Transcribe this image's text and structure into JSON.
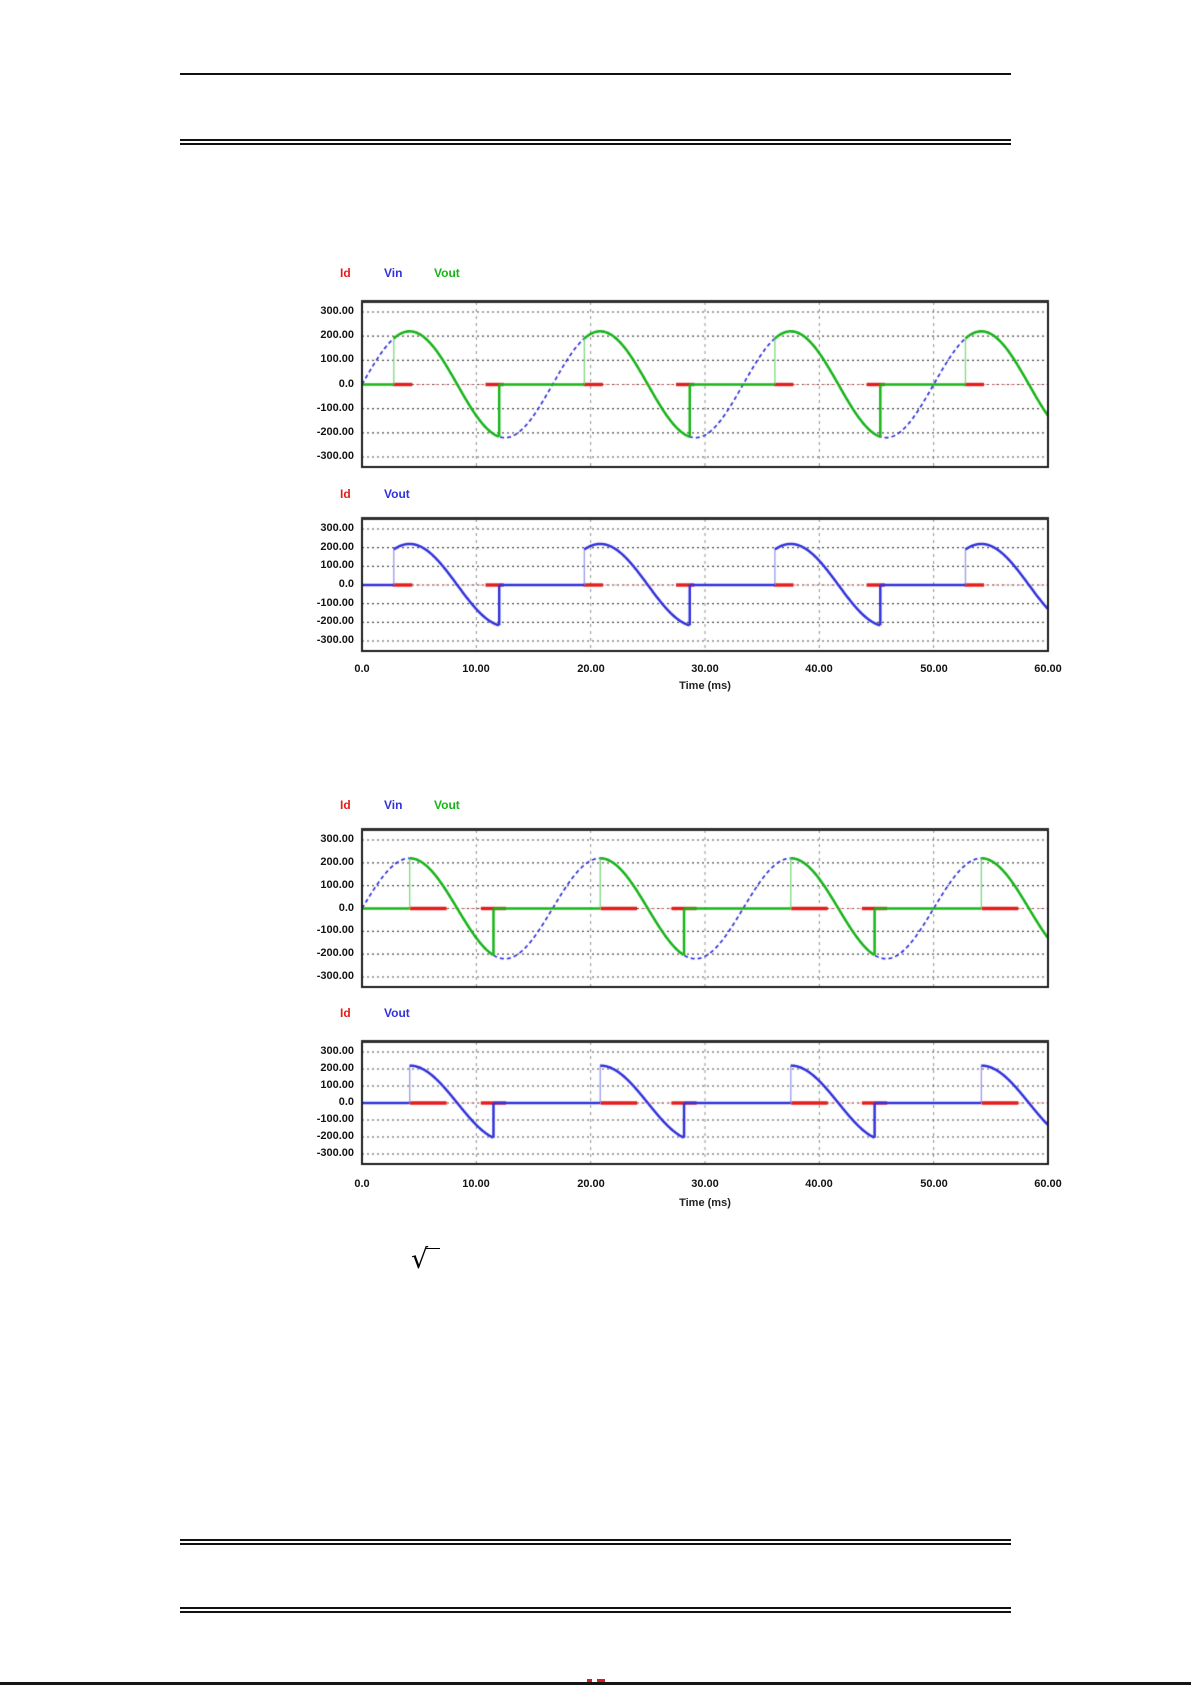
{
  "figures": [
    {
      "x_label": "Time (ms)",
      "x_tick_labels": [
        "0.0",
        "10.00",
        "20.00",
        "30.00",
        "40.00",
        "50.00",
        "60.00"
      ],
      "plots": [
        {
          "legend": [
            {
              "label": "Id",
              "color": "#e41c1c"
            },
            {
              "label": "Vin",
              "color": "#3232dc"
            },
            {
              "label": "Vout",
              "color": "#17b517"
            }
          ],
          "y_tick_labels": [
            "300.00",
            "200.00",
            "100.00",
            "0.0",
            "-100.00",
            "-200.00",
            "-300.00"
          ]
        },
        {
          "legend": [
            {
              "label": "Id",
              "color": "#e41c1c"
            },
            {
              "label": "Vout",
              "color": "#3232dc"
            }
          ],
          "y_tick_labels": [
            "300.00",
            "200.00",
            "100.00",
            "0.0",
            "-100.00",
            "-200.00",
            "-300.00"
          ]
        }
      ]
    },
    {
      "x_label": "Time (ms)",
      "x_tick_labels": [
        "0.0",
        "10.00",
        "20.00",
        "30.00",
        "40.00",
        "50.00",
        "60.00"
      ],
      "plots": [
        {
          "legend": [
            {
              "label": "Id",
              "color": "#e41c1c"
            },
            {
              "label": "Vin",
              "color": "#3232dc"
            },
            {
              "label": "Vout",
              "color": "#17b517"
            }
          ],
          "y_tick_labels": [
            "300.00",
            "200.00",
            "100.00",
            "0.0",
            "-100.00",
            "-200.00",
            "-300.00"
          ]
        },
        {
          "legend": [
            {
              "label": "Id",
              "color": "#e41c1c"
            },
            {
              "label": "Vout",
              "color": "#3232dc"
            }
          ],
          "y_tick_labels": [
            "300.00",
            "200.00",
            "100.00",
            "0.0",
            "-100.00",
            "-200.00",
            "-300.00"
          ]
        }
      ]
    }
  ],
  "equation_fragment": {
    "radical": "√"
  },
  "chart_data": [
    {
      "id": "figure1-upper",
      "type": "line",
      "xlabel": "Time (ms)",
      "x_range_ms": [
        0,
        60
      ],
      "y_range": [
        -300,
        300
      ],
      "x_ticks_ms": [
        0,
        10,
        20,
        30,
        40,
        50,
        60
      ],
      "y_ticks": [
        300,
        200,
        100,
        0,
        -100,
        -200,
        -300
      ],
      "grid": "dashed",
      "legend_position": "top-left",
      "series": [
        {
          "name": "Id",
          "color": "#e41c1c",
          "kind": "pulse-at-zero",
          "level": 0,
          "period_ms": 16.667,
          "pulses_ms_per_cycle": [
            [
              2.7,
              4.4
            ],
            [
              10.8,
              12.4
            ]
          ]
        },
        {
          "name": "Vin",
          "color": "#3232dc",
          "kind": "sine",
          "amplitude": 220,
          "frequency_hz": 60,
          "period_ms": 16.667
        },
        {
          "name": "Vout",
          "color": "#17b517",
          "kind": "gated-sine",
          "amplitude": 220,
          "period_ms": 16.667,
          "on_ms": 2.78,
          "off_ms": 12.0,
          "on_deg": 60,
          "off_deg": 259
        }
      ]
    },
    {
      "id": "figure1-lower",
      "type": "line",
      "xlabel": "Time (ms)",
      "x_range_ms": [
        0,
        60
      ],
      "y_range": [
        -300,
        300
      ],
      "x_ticks_ms": [
        0,
        10,
        20,
        30,
        40,
        50,
        60
      ],
      "y_ticks": [
        300,
        200,
        100,
        0,
        -100,
        -200,
        -300
      ],
      "grid": "dashed",
      "legend_position": "top-left",
      "series": [
        {
          "name": "Id",
          "color": "#e41c1c",
          "kind": "pulse-at-zero",
          "level": 0,
          "period_ms": 16.667,
          "pulses_ms_per_cycle": [
            [
              2.7,
              4.4
            ],
            [
              10.8,
              12.4
            ]
          ]
        },
        {
          "name": "Vout",
          "color": "#3232dc",
          "kind": "gated-sine",
          "amplitude": 220,
          "period_ms": 16.667,
          "on_ms": 2.78,
          "off_ms": 12.0,
          "on_deg": 60,
          "off_deg": 259
        }
      ]
    },
    {
      "id": "figure2-upper",
      "type": "line",
      "xlabel": "Time (ms)",
      "x_range_ms": [
        0,
        60
      ],
      "y_range": [
        -300,
        300
      ],
      "x_ticks_ms": [
        0,
        10,
        20,
        30,
        40,
        50,
        60
      ],
      "y_ticks": [
        300,
        200,
        100,
        0,
        -100,
        -200,
        -300
      ],
      "grid": "dashed",
      "legend_position": "top-left",
      "series": [
        {
          "name": "Id",
          "color": "#e41c1c",
          "kind": "pulse-at-zero",
          "level": 0,
          "period_ms": 16.667,
          "pulses_ms_per_cycle": [
            [
              4.2,
              7.4
            ],
            [
              10.4,
              12.6
            ]
          ]
        },
        {
          "name": "Vin",
          "color": "#3232dc",
          "kind": "sine",
          "amplitude": 220,
          "frequency_hz": 60,
          "period_ms": 16.667
        },
        {
          "name": "Vout",
          "color": "#17b517",
          "kind": "gated-sine",
          "amplitude": 220,
          "period_ms": 16.667,
          "on_ms": 4.17,
          "off_ms": 11.5,
          "on_deg": 90,
          "off_deg": 248
        }
      ]
    },
    {
      "id": "figure2-lower",
      "type": "line",
      "xlabel": "Time (ms)",
      "x_range_ms": [
        0,
        60
      ],
      "y_range": [
        -300,
        300
      ],
      "x_ticks_ms": [
        0,
        10,
        20,
        30,
        40,
        50,
        60
      ],
      "y_ticks": [
        300,
        200,
        100,
        0,
        -100,
        -200,
        -300
      ],
      "grid": "dashed",
      "legend_position": "top-left",
      "series": [
        {
          "name": "Id",
          "color": "#e41c1c",
          "kind": "pulse-at-zero",
          "level": 0,
          "period_ms": 16.667,
          "pulses_ms_per_cycle": [
            [
              4.2,
              7.4
            ],
            [
              10.4,
              12.6
            ]
          ]
        },
        {
          "name": "Vout",
          "color": "#3232dc",
          "kind": "gated-sine",
          "amplitude": 220,
          "period_ms": 16.667,
          "on_ms": 4.17,
          "off_ms": 11.5,
          "on_deg": 90,
          "off_deg": 248
        }
      ]
    }
  ]
}
